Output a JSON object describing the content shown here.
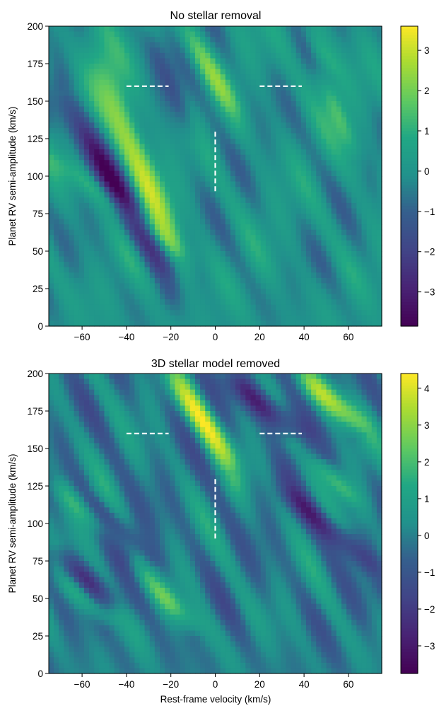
{
  "chart_data": [
    {
      "type": "heatmap",
      "title": "No stellar removal",
      "xlabel": "",
      "ylabel": "Planet RV semi-amplitude (km/s)",
      "xlim": [
        -75,
        75
      ],
      "ylim": [
        0,
        200
      ],
      "x_ticks": [
        -60,
        -40,
        -20,
        0,
        20,
        40,
        60
      ],
      "x_tick_labels": [
        "−60",
        "−40",
        "−20",
        "0",
        "20",
        "40",
        "60"
      ],
      "y_ticks": [
        0,
        25,
        50,
        75,
        100,
        125,
        150,
        175,
        200
      ],
      "y_tick_labels": [
        "0",
        "25",
        "50",
        "75",
        "100",
        "125",
        "150",
        "175",
        "200"
      ],
      "colormap": "viridis",
      "colorbar": {
        "vmin": -3.85,
        "vmax": 3.6,
        "ticks": [
          3,
          2,
          1,
          0,
          -1,
          -2,
          -3
        ],
        "tick_labels": [
          "3",
          "2",
          "1",
          "0",
          "−1",
          "−2",
          "−3"
        ]
      },
      "markers": [
        {
          "type": "hline",
          "x": [
            -40,
            -21
          ],
          "y": 160,
          "style": "dashed",
          "color": "#ffffff"
        },
        {
          "type": "hline",
          "x": [
            20,
            39
          ],
          "y": 160,
          "style": "dashed",
          "color": "#ffffff"
        },
        {
          "type": "vline",
          "x": 0,
          "y": [
            90,
            130
          ],
          "style": "dashed",
          "color": "#ffffff"
        }
      ],
      "features": [
        {
          "kind": "ridge",
          "x0": -58,
          "y0": 200,
          "x1": -15,
          "y1": 40,
          "amp": 2.8,
          "width": 4.5
        },
        {
          "kind": "ridge",
          "x0": -75,
          "y0": 115,
          "x1": -12,
          "y1": 45,
          "amp": 1.4,
          "width": 3.5
        },
        {
          "kind": "ridge",
          "x0": -70,
          "y0": 155,
          "x1": -20,
          "y1": 30,
          "amp": -3.3,
          "width": 4.5
        },
        {
          "kind": "ridge",
          "x0": -32,
          "y0": 200,
          "x1": -8,
          "y1": 120,
          "amp": -1.5,
          "width": 3
        },
        {
          "kind": "ridge",
          "x0": -15,
          "y0": 200,
          "x1": 10,
          "y1": 140,
          "amp": 1.5,
          "width": 3.5
        },
        {
          "kind": "ridge",
          "x0": 45,
          "y0": 175,
          "x1": 65,
          "y1": 110,
          "amp": 1.7,
          "width": 3
        },
        {
          "kind": "ridge",
          "x0": 40,
          "y0": 200,
          "x1": 55,
          "y1": 165,
          "amp": 1.0,
          "width": 3
        }
      ],
      "texture": {
        "amp": 0.9,
        "seed": 3
      }
    },
    {
      "type": "heatmap",
      "title": "3D stellar model removed",
      "xlabel": "Rest-frame velocity (km/s)",
      "ylabel": "Planet RV semi-amplitude (km/s)",
      "xlim": [
        -75,
        75
      ],
      "ylim": [
        0,
        200
      ],
      "x_ticks": [
        -60,
        -40,
        -20,
        0,
        20,
        40,
        60
      ],
      "x_tick_labels": [
        "−60",
        "−40",
        "−20",
        "0",
        "20",
        "40",
        "60"
      ],
      "y_ticks": [
        0,
        25,
        50,
        75,
        100,
        125,
        150,
        175,
        200
      ],
      "y_tick_labels": [
        "0",
        "25",
        "50",
        "75",
        "100",
        "125",
        "150",
        "175",
        "200"
      ],
      "colormap": "viridis",
      "colorbar": {
        "vmin": -3.75,
        "vmax": 4.4,
        "ticks": [
          4,
          3,
          2,
          1,
          0,
          -1,
          -2,
          -3
        ],
        "tick_labels": [
          "4",
          "3",
          "2",
          "1",
          "0",
          "−1",
          "−2",
          "−3"
        ]
      },
      "markers": [
        {
          "type": "hline",
          "x": [
            -40,
            -21
          ],
          "y": 160,
          "style": "dashed",
          "color": "#ffffff"
        },
        {
          "type": "hline",
          "x": [
            20,
            39
          ],
          "y": 160,
          "style": "dashed",
          "color": "#ffffff"
        },
        {
          "type": "vline",
          "x": 0,
          "y": [
            90,
            130
          ],
          "style": "dashed",
          "color": "#ffffff"
        }
      ],
      "features": [
        {
          "kind": "ridge",
          "x0": -20,
          "y0": 200,
          "x1": 10,
          "y1": 135,
          "amp": 3.6,
          "width": 4
        },
        {
          "kind": "ridge",
          "x0": 40,
          "y0": 200,
          "x1": 68,
          "y1": 160,
          "amp": 3.5,
          "width": 4
        },
        {
          "kind": "ridge",
          "x0": 5,
          "y0": 200,
          "x1": 40,
          "y1": 155,
          "amp": -3.0,
          "width": 4
        },
        {
          "kind": "ridge",
          "x0": -75,
          "y0": 130,
          "x1": -35,
          "y1": 80,
          "amp": 2.0,
          "width": 3.5
        },
        {
          "kind": "ridge",
          "x0": 45,
          "y0": 145,
          "x1": 65,
          "y1": 110,
          "amp": 2.2,
          "width": 3
        },
        {
          "kind": "ridge",
          "x0": -60,
          "y0": 120,
          "x1": -25,
          "y1": 70,
          "amp": -2.4,
          "width": 3.5
        },
        {
          "kind": "ridge",
          "x0": 30,
          "y0": 125,
          "x1": 75,
          "y1": 65,
          "amp": -2.3,
          "width": 3.5
        },
        {
          "kind": "ridge",
          "x0": -75,
          "y0": 85,
          "x1": -40,
          "y1": 40,
          "amp": -2.0,
          "width": 3.5
        },
        {
          "kind": "ridge",
          "x0": -35,
          "y0": 70,
          "x1": -5,
          "y1": 25,
          "amp": 2.0,
          "width": 3.5
        },
        {
          "kind": "ridge",
          "x0": -70,
          "y0": 65,
          "x1": -45,
          "y1": 30,
          "amp": 1.8,
          "width": 3
        }
      ],
      "texture": {
        "amp": 1.3,
        "seed": 11
      }
    }
  ]
}
